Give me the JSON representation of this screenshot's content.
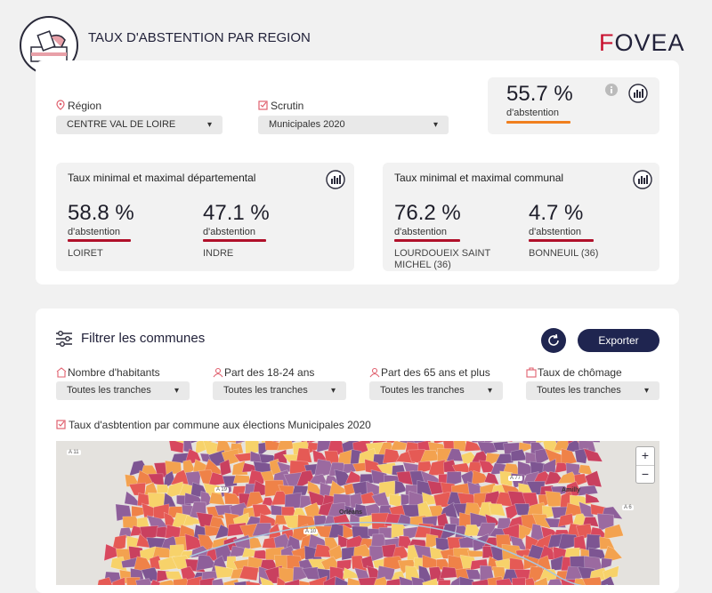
{
  "header": {
    "title": "TAUX D'ABSTENTION PAR REGION",
    "logo": [
      "F",
      "OVEA"
    ]
  },
  "selectors": {
    "region": {
      "label": "Région",
      "value": "CENTRE VAL DE LOIRE"
    },
    "scrutin": {
      "label": "Scrutin",
      "value": "Municipales 2020"
    }
  },
  "summary": {
    "value": "55.7 %",
    "caption": "d'abstention"
  },
  "departmental": {
    "title": "Taux minimal et maximal départemental",
    "items": [
      {
        "value": "58.8 %",
        "caption": "d'abstention",
        "place": "LOIRET"
      },
      {
        "value": "47.1 %",
        "caption": "d'abstention",
        "place": "INDRE"
      }
    ]
  },
  "communal": {
    "title": "Taux minimal et maximal communal",
    "items": [
      {
        "value": "76.2 %",
        "caption": "d'abstention",
        "place": "LOURDOUEIX SAINT MICHEL (36)"
      },
      {
        "value": "4.7 %",
        "caption": "d'abstention",
        "place": "BONNEUIL (36)"
      }
    ]
  },
  "filter_panel": {
    "title": "Filtrer les communes",
    "export": "Exporter",
    "filters": [
      {
        "label": "Nombre d'habitants",
        "value": "Toutes les tranches"
      },
      {
        "label": "Part des 18-24 ans",
        "value": "Toutes les tranches"
      },
      {
        "label": "Part des 65 ans et plus",
        "value": "Toutes les tranches"
      },
      {
        "label": "Taux de chômage",
        "value": "Toutes les tranches"
      }
    ]
  },
  "map": {
    "title": "Taux d'asbtention par commune aux élections Municipales 2020",
    "zoom_in": "+",
    "zoom_out": "−",
    "labels": [
      "Orléans",
      "Amilly",
      "A 10",
      "A 19",
      "A 77",
      "A 6",
      "A 11"
    ]
  }
}
